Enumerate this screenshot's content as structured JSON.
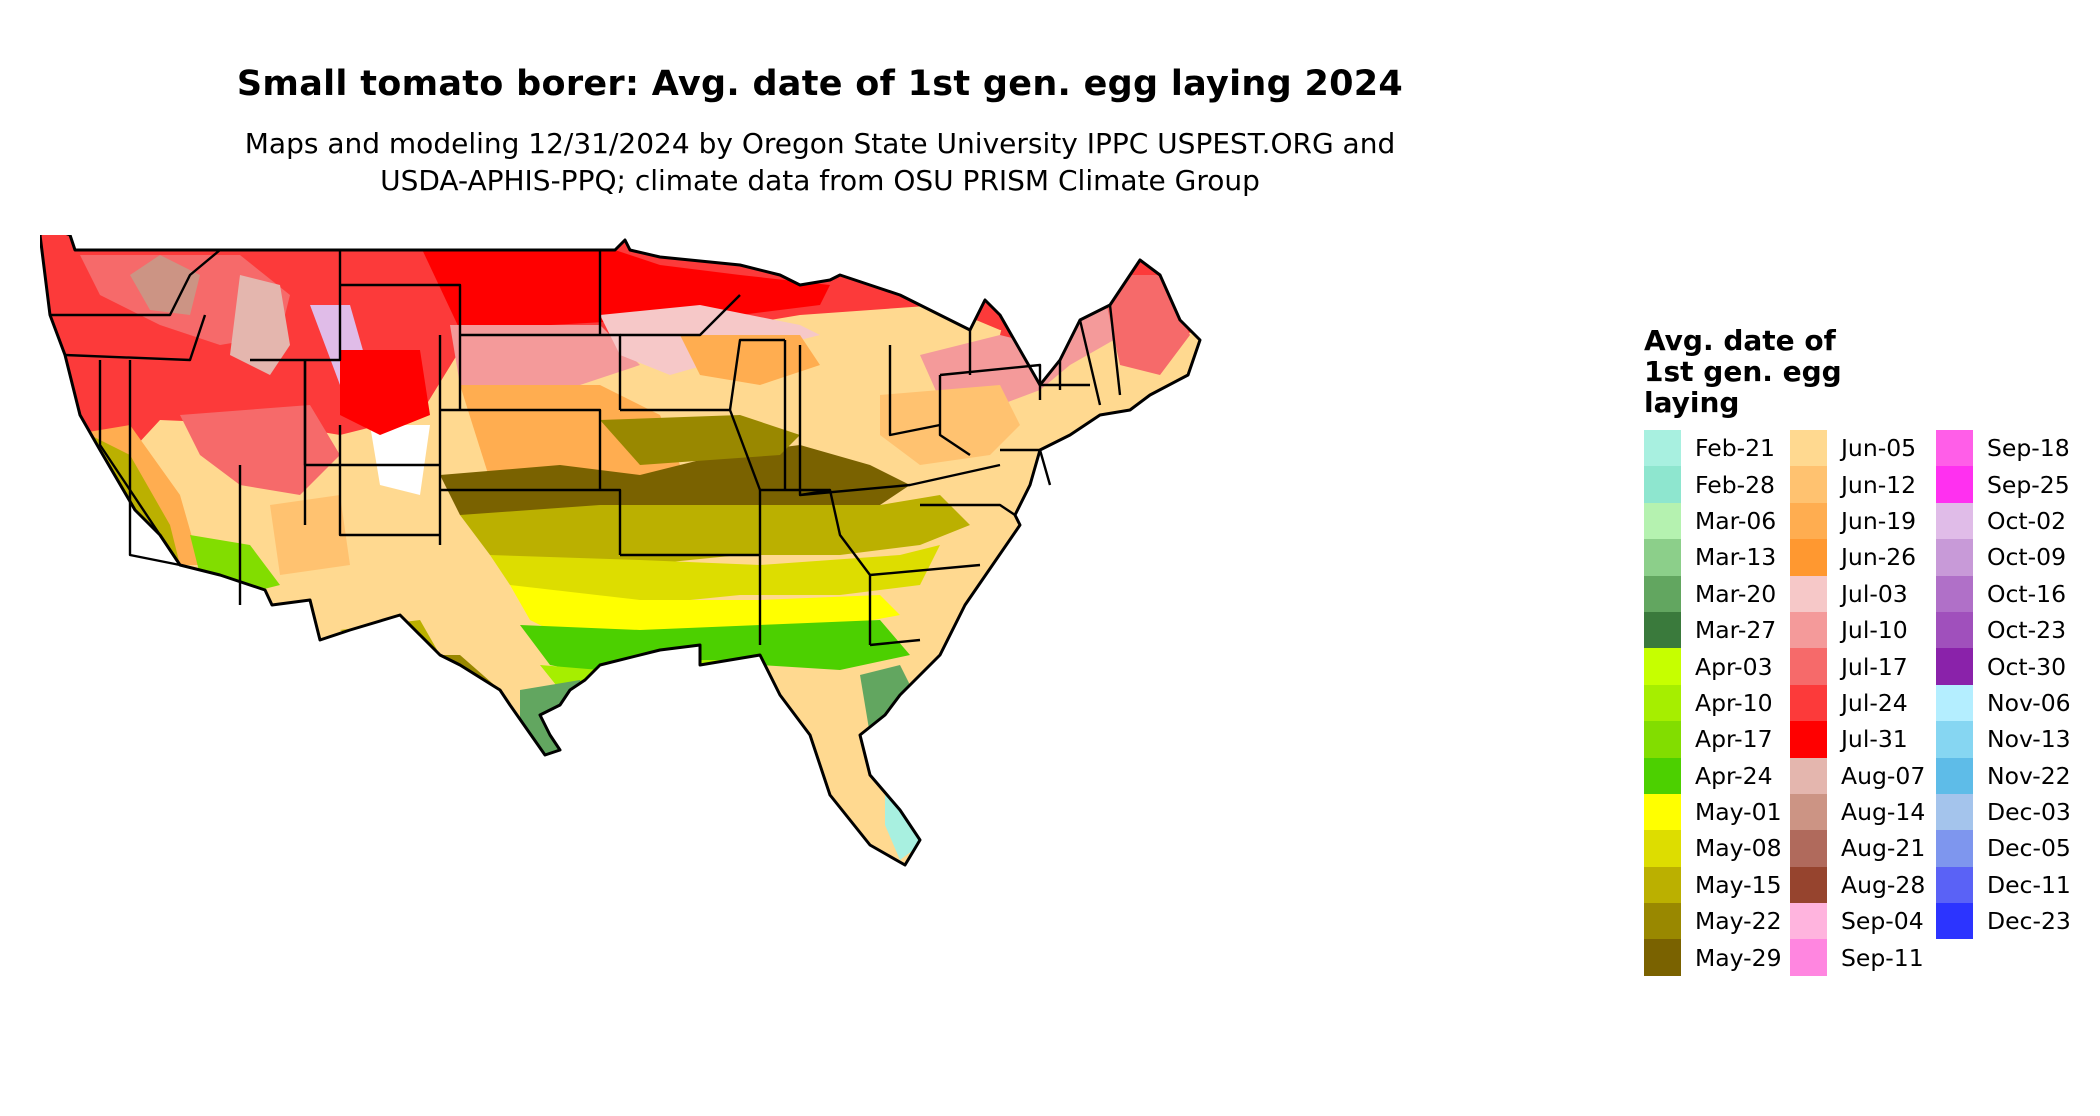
{
  "title": "Small tomato borer: Avg. date of 1st gen. egg laying 2024",
  "subtitle": "Maps and modeling 12/31/2024 by Oregon State University IPPC USPEST.ORG and\nUSDA-APHIS-PPQ; climate data from OSU PRISM Climate Group",
  "legend": {
    "title": "Avg. date of\n1st gen. egg\nlaying",
    "columns": [
      [
        {
          "label": "Feb-21",
          "color": "#a8f0e0"
        },
        {
          "label": "Feb-28",
          "color": "#8ee6cf"
        },
        {
          "label": "Mar-06",
          "color": "#b5f2b0"
        },
        {
          "label": "Mar-13",
          "color": "#8ccf8a"
        },
        {
          "label": "Mar-20",
          "color": "#62a660"
        },
        {
          "label": "Mar-27",
          "color": "#3a7a3c"
        },
        {
          "label": "Apr-03",
          "color": "#c6ff00"
        },
        {
          "label": "Apr-10",
          "color": "#a6ee00"
        },
        {
          "label": "Apr-17",
          "color": "#82dd00"
        },
        {
          "label": "Apr-24",
          "color": "#4cd000"
        },
        {
          "label": "May-01",
          "color": "#ffff00"
        },
        {
          "label": "May-08",
          "color": "#dddd00"
        },
        {
          "label": "May-15",
          "color": "#bbb000"
        },
        {
          "label": "May-22",
          "color": "#998800"
        },
        {
          "label": "May-29",
          "color": "#7a6200"
        }
      ],
      [
        {
          "label": "Jun-05",
          "color": "#ffd990"
        },
        {
          "label": "Jun-12",
          "color": "#ffc270"
        },
        {
          "label": "Jun-19",
          "color": "#ffad50"
        },
        {
          "label": "Jun-26",
          "color": "#ff9830"
        },
        {
          "label": "Jul-03",
          "color": "#f6c8c8"
        },
        {
          "label": "Jul-10",
          "color": "#f49a9a"
        },
        {
          "label": "Jul-17",
          "color": "#f66a6a"
        },
        {
          "label": "Jul-24",
          "color": "#fc3a3a"
        },
        {
          "label": "Jul-31",
          "color": "#ff0000"
        },
        {
          "label": "Aug-07",
          "color": "#e4b6ae"
        },
        {
          "label": "Aug-14",
          "color": "#cc9484"
        },
        {
          "label": "Aug-21",
          "color": "#b06a5c"
        },
        {
          "label": "Aug-28",
          "color": "#96442e"
        },
        {
          "label": "Sep-04",
          "color": "#ffb4de"
        },
        {
          "label": "Sep-11",
          "color": "#ff86e0"
        }
      ],
      [
        {
          "label": "Sep-18",
          "color": "#ff5ee8"
        },
        {
          "label": "Sep-25",
          "color": "#ff30f0"
        },
        {
          "label": "Oct-02",
          "color": "#e0bce8"
        },
        {
          "label": "Oct-09",
          "color": "#c89ad8"
        },
        {
          "label": "Oct-16",
          "color": "#b070c8"
        },
        {
          "label": "Oct-23",
          "color": "#a050bc"
        },
        {
          "label": "Oct-30",
          "color": "#8a22aa"
        },
        {
          "label": "Nov-06",
          "color": "#b4eeff"
        },
        {
          "label": "Nov-13",
          "color": "#86d6f2"
        },
        {
          "label": "Nov-22",
          "color": "#5ebce8"
        },
        {
          "label": "Dec-03",
          "color": "#a4c4ec"
        },
        {
          "label": "Dec-05",
          "color": "#7e96ee"
        },
        {
          "label": "Dec-11",
          "color": "#5a62f6"
        },
        {
          "label": "Dec-23",
          "color": "#2c34ff"
        }
      ]
    ]
  }
}
